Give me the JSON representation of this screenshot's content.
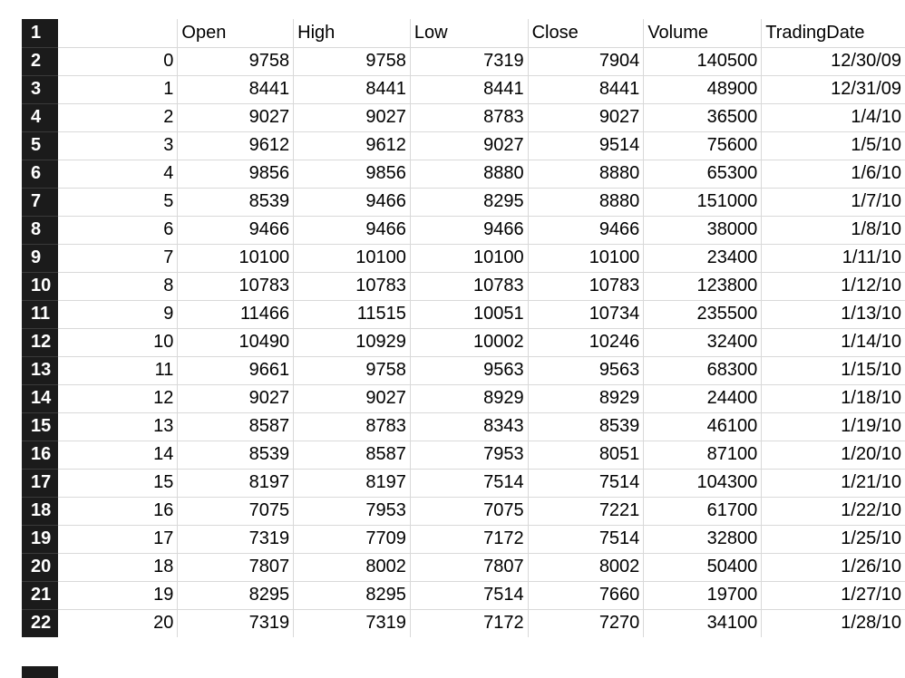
{
  "sheet": {
    "row_numbers": [
      "1",
      "2",
      "3",
      "4",
      "5",
      "6",
      "7",
      "8",
      "9",
      "10",
      "11",
      "12",
      "13",
      "14",
      "15",
      "16",
      "17",
      "18",
      "19",
      "20",
      "21",
      "22"
    ],
    "headers": [
      "",
      "Open",
      "High",
      "Low",
      "Close",
      "Volume",
      "TradingDate"
    ],
    "rows": [
      [
        "0",
        "9758",
        "9758",
        "7319",
        "7904",
        "140500",
        "12/30/09"
      ],
      [
        "1",
        "8441",
        "8441",
        "8441",
        "8441",
        "48900",
        "12/31/09"
      ],
      [
        "2",
        "9027",
        "9027",
        "8783",
        "9027",
        "36500",
        "1/4/10"
      ],
      [
        "3",
        "9612",
        "9612",
        "9027",
        "9514",
        "75600",
        "1/5/10"
      ],
      [
        "4",
        "9856",
        "9856",
        "8880",
        "8880",
        "65300",
        "1/6/10"
      ],
      [
        "5",
        "8539",
        "9466",
        "8295",
        "8880",
        "151000",
        "1/7/10"
      ],
      [
        "6",
        "9466",
        "9466",
        "9466",
        "9466",
        "38000",
        "1/8/10"
      ],
      [
        "7",
        "10100",
        "10100",
        "10100",
        "10100",
        "23400",
        "1/11/10"
      ],
      [
        "8",
        "10783",
        "10783",
        "10783",
        "10783",
        "123800",
        "1/12/10"
      ],
      [
        "9",
        "11466",
        "11515",
        "10051",
        "10734",
        "235500",
        "1/13/10"
      ],
      [
        "10",
        "10490",
        "10929",
        "10002",
        "10246",
        "32400",
        "1/14/10"
      ],
      [
        "11",
        "9661",
        "9758",
        "9563",
        "9563",
        "68300",
        "1/15/10"
      ],
      [
        "12",
        "9027",
        "9027",
        "8929",
        "8929",
        "24400",
        "1/18/10"
      ],
      [
        "13",
        "8587",
        "8783",
        "8343",
        "8539",
        "46100",
        "1/19/10"
      ],
      [
        "14",
        "8539",
        "8587",
        "7953",
        "8051",
        "87100",
        "1/20/10"
      ],
      [
        "15",
        "8197",
        "8197",
        "7514",
        "7514",
        "104300",
        "1/21/10"
      ],
      [
        "16",
        "7075",
        "7953",
        "7075",
        "7221",
        "61700",
        "1/22/10"
      ],
      [
        "17",
        "7319",
        "7709",
        "7172",
        "7514",
        "32800",
        "1/25/10"
      ],
      [
        "18",
        "7807",
        "8002",
        "7807",
        "8002",
        "50400",
        "1/26/10"
      ],
      [
        "19",
        "8295",
        "8295",
        "7514",
        "7660",
        "19700",
        "1/27/10"
      ],
      [
        "20",
        "7319",
        "7319",
        "7172",
        "7270",
        "34100",
        "1/28/10"
      ]
    ]
  }
}
